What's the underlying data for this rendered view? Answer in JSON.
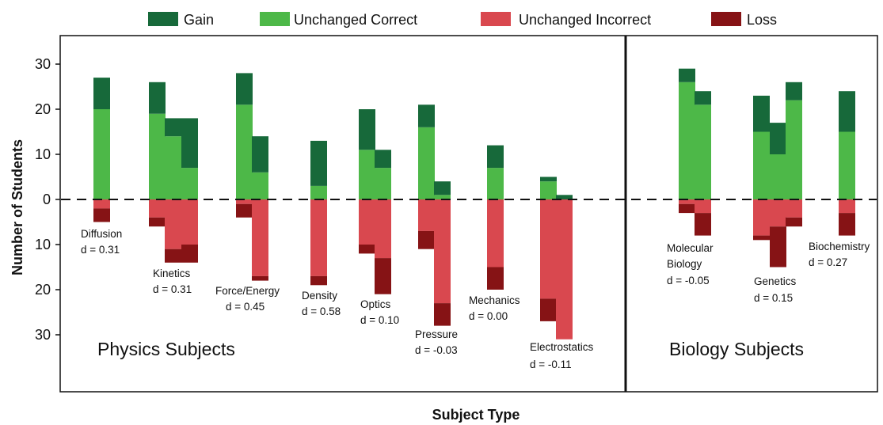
{
  "colors": {
    "gain": "#17693a",
    "unchanged_correct": "#4db848",
    "unchanged_incorrect": "#d9484f",
    "loss": "#861315"
  },
  "chart_data": {
    "type": "bar",
    "subtype": "diverging stacked bar",
    "xlabel": "Subject Type",
    "ylabel": "Number of Students",
    "ylim": [
      -40,
      36
    ],
    "yticks": [
      30,
      20,
      10,
      0,
      10,
      20,
      30
    ],
    "zero_line": "dashed",
    "legend": {
      "placement": "top",
      "entries": [
        "Gain",
        "Unchanged Correct",
        "Unchanged Incorrect",
        "Loss"
      ]
    },
    "panels": [
      "Physics Subjects",
      "Biology Subjects"
    ],
    "groups": [
      {
        "panel": "Physics Subjects",
        "label": "Diffusion",
        "d": "d = 0.31",
        "bars": [
          {
            "unchanged_correct": 20,
            "gain": 7,
            "unchanged_incorrect": 2,
            "loss": 3
          }
        ]
      },
      {
        "panel": "Physics Subjects",
        "label": "Kinetics",
        "d": "d = 0.31",
        "bars": [
          {
            "unchanged_correct": 19,
            "gain": 7,
            "unchanged_incorrect": 4,
            "loss": 2
          },
          {
            "unchanged_correct": 14,
            "gain": 4,
            "unchanged_incorrect": 11,
            "loss": 3
          },
          {
            "unchanged_correct": 7,
            "gain": 11,
            "unchanged_incorrect": 10,
            "loss": 4
          }
        ]
      },
      {
        "panel": "Physics Subjects",
        "label": "Force/Energy",
        "d": "d = 0.45",
        "bars": [
          {
            "unchanged_correct": 21,
            "gain": 7,
            "unchanged_incorrect": 1,
            "loss": 3
          },
          {
            "unchanged_correct": 6,
            "gain": 8,
            "unchanged_incorrect": 17,
            "loss": 1
          }
        ]
      },
      {
        "panel": "Physics Subjects",
        "label": "Density",
        "d": "d = 0.58",
        "bars": [
          {
            "unchanged_correct": 3,
            "gain": 10,
            "unchanged_incorrect": 17,
            "loss": 2
          }
        ]
      },
      {
        "panel": "Physics Subjects",
        "label": "Optics",
        "d": "d = 0.10",
        "bars": [
          {
            "unchanged_correct": 11,
            "gain": 9,
            "unchanged_incorrect": 10,
            "loss": 2
          },
          {
            "unchanged_correct": 7,
            "gain": 4,
            "unchanged_incorrect": 13,
            "loss": 8
          }
        ]
      },
      {
        "panel": "Physics Subjects",
        "label": "Pressure",
        "d": "d = -0.03",
        "bars": [
          {
            "unchanged_correct": 16,
            "gain": 5,
            "unchanged_incorrect": 7,
            "loss": 4
          },
          {
            "unchanged_correct": 1,
            "gain": 3,
            "unchanged_incorrect": 23,
            "loss": 5
          }
        ]
      },
      {
        "panel": "Physics Subjects",
        "label": "Mechanics",
        "d": "d = 0.00",
        "bars": [
          {
            "unchanged_correct": 7,
            "gain": 5,
            "unchanged_incorrect": 15,
            "loss": 5
          }
        ]
      },
      {
        "panel": "Physics Subjects",
        "label": "Electrostatics",
        "d": "d = -0.11",
        "bars": [
          {
            "unchanged_correct": 4,
            "gain": 1,
            "unchanged_incorrect": 22,
            "loss": 5
          },
          {
            "unchanged_correct": 0,
            "gain": 1,
            "unchanged_incorrect": 31,
            "loss": 0
          }
        ]
      },
      {
        "panel": "Biology Subjects",
        "label": "Molecular Biology",
        "label_lines": [
          "Molecular",
          "Biology"
        ],
        "d": "d = -0.05",
        "bars": [
          {
            "unchanged_correct": 26,
            "gain": 3,
            "unchanged_incorrect": 1,
            "loss": 2
          },
          {
            "unchanged_correct": 21,
            "gain": 3,
            "unchanged_incorrect": 3,
            "loss": 5
          }
        ]
      },
      {
        "panel": "Biology Subjects",
        "label": "Genetics",
        "d": "d = 0.15",
        "bars": [
          {
            "unchanged_correct": 15,
            "gain": 8,
            "unchanged_incorrect": 8,
            "loss": 1
          },
          {
            "unchanged_correct": 10,
            "gain": 7,
            "unchanged_incorrect": 6,
            "loss": 9
          },
          {
            "unchanged_correct": 22,
            "gain": 4,
            "unchanged_incorrect": 4,
            "loss": 2
          }
        ]
      },
      {
        "panel": "Biology Subjects",
        "label": "Biochemistry",
        "d": "d = 0.27",
        "bars": [
          {
            "unchanged_correct": 15,
            "gain": 9,
            "unchanged_incorrect": 3,
            "loss": 5
          }
        ]
      }
    ]
  }
}
